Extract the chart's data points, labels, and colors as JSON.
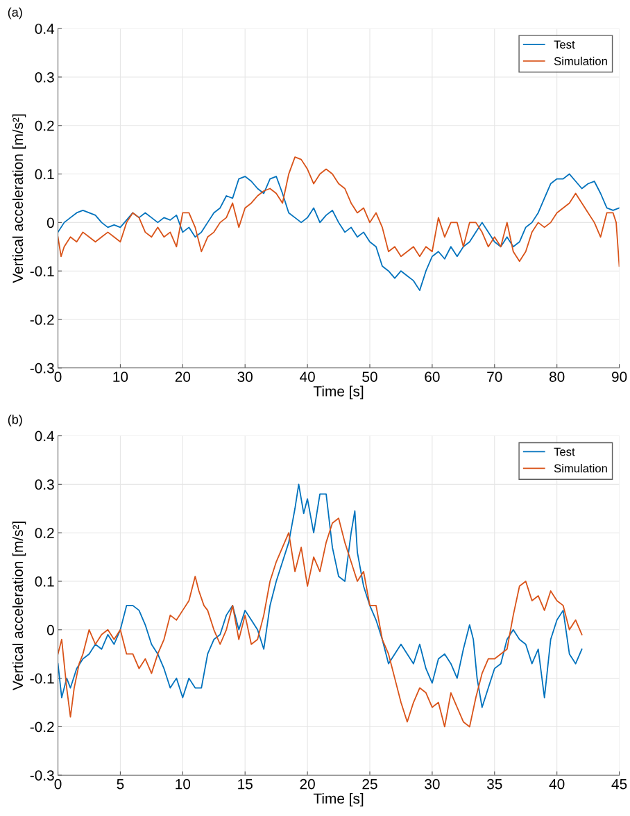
{
  "chart_data": [
    {
      "type": "line",
      "xlabel": "Time [s]",
      "ylabel": "Vertical acceleration [m/s²]",
      "annotations": [
        "(a)"
      ],
      "xlim": [
        0,
        90
      ],
      "ylim": [
        -0.3,
        0.4
      ],
      "xticks": [
        0,
        10,
        20,
        30,
        40,
        50,
        60,
        70,
        80,
        90
      ],
      "yticks": [
        -0.3,
        -0.2,
        -0.1,
        0,
        0.1,
        0.2,
        0.3,
        0.4
      ],
      "grid": true,
      "legend": "top right",
      "marker": "none",
      "line_style": "solid",
      "series": [
        {
          "name": "Test",
          "color": "#0072bd",
          "x": [
            0,
            1,
            2,
            3,
            4,
            5,
            6,
            7,
            8,
            9,
            10,
            11,
            12,
            13,
            14,
            15,
            16,
            17,
            18,
            19,
            20,
            21,
            22,
            23,
            24,
            25,
            26,
            27,
            28,
            29,
            30,
            31,
            32,
            33,
            34,
            35,
            36,
            37,
            38,
            39,
            40,
            41,
            42,
            43,
            44,
            45,
            46,
            47,
            48,
            49,
            50,
            51,
            52,
            53,
            54,
            55,
            56,
            57,
            58,
            59,
            60,
            61,
            62,
            63,
            64,
            65,
            66,
            67,
            68,
            69,
            70,
            71,
            72,
            73,
            74,
            75,
            76,
            77,
            78,
            79,
            80,
            81,
            82,
            83,
            84,
            85,
            86,
            87,
            88,
            89,
            90
          ],
          "values": [
            -0.02,
            0.0,
            0.01,
            0.02,
            0.025,
            0.02,
            0.015,
            0.0,
            -0.01,
            -0.005,
            -0.01,
            0.005,
            0.02,
            0.01,
            0.02,
            0.01,
            0.0,
            0.01,
            0.005,
            0.015,
            -0.02,
            -0.01,
            -0.03,
            -0.02,
            0.0,
            0.02,
            0.03,
            0.055,
            0.05,
            0.09,
            0.095,
            0.085,
            0.07,
            0.06,
            0.09,
            0.095,
            0.06,
            0.02,
            0.01,
            0.0,
            0.01,
            0.03,
            0.0,
            0.015,
            0.025,
            0.0,
            -0.02,
            -0.01,
            -0.03,
            -0.02,
            -0.04,
            -0.05,
            -0.09,
            -0.1,
            -0.115,
            -0.1,
            -0.11,
            -0.12,
            -0.14,
            -0.1,
            -0.07,
            -0.06,
            -0.075,
            -0.05,
            -0.07,
            -0.05,
            -0.04,
            -0.02,
            0.0,
            -0.02,
            -0.04,
            -0.05,
            -0.03,
            -0.05,
            -0.04,
            -0.01,
            0.0,
            0.02,
            0.05,
            0.08,
            0.09,
            0.09,
            0.1,
            0.085,
            0.07,
            0.08,
            0.085,
            0.06,
            0.03,
            0.025,
            0.03
          ]
        },
        {
          "name": "Simulation",
          "color": "#d95319",
          "x": [
            0,
            0.5,
            1,
            2,
            3,
            4,
            5,
            6,
            7,
            8,
            9,
            10,
            11,
            12,
            13,
            14,
            15,
            16,
            17,
            18,
            19,
            20,
            21,
            22,
            23,
            24,
            25,
            26,
            27,
            28,
            29,
            30,
            31,
            32,
            33,
            34,
            35,
            36,
            37,
            38,
            39,
            40,
            41,
            42,
            43,
            44,
            45,
            46,
            47,
            48,
            49,
            50,
            51,
            52,
            53,
            54,
            55,
            56,
            57,
            58,
            59,
            60,
            61,
            62,
            63,
            64,
            65,
            66,
            67,
            68,
            69,
            70,
            71,
            72,
            73,
            74,
            75,
            76,
            77,
            78,
            79,
            80,
            81,
            82,
            83,
            84,
            85,
            86,
            87,
            88,
            89,
            89.5,
            90
          ],
          "values": [
            -0.03,
            -0.07,
            -0.05,
            -0.03,
            -0.04,
            -0.02,
            -0.03,
            -0.04,
            -0.03,
            -0.02,
            -0.03,
            -0.04,
            0.0,
            0.02,
            0.01,
            -0.02,
            -0.03,
            -0.01,
            -0.03,
            -0.02,
            -0.05,
            0.02,
            0.02,
            -0.01,
            -0.06,
            -0.03,
            -0.02,
            0.0,
            0.01,
            0.04,
            -0.01,
            0.03,
            0.04,
            0.055,
            0.065,
            0.07,
            0.06,
            0.04,
            0.1,
            0.135,
            0.13,
            0.11,
            0.08,
            0.1,
            0.11,
            0.1,
            0.08,
            0.07,
            0.04,
            0.02,
            0.03,
            0.0,
            0.02,
            -0.01,
            -0.06,
            -0.05,
            -0.07,
            -0.06,
            -0.05,
            -0.07,
            -0.05,
            -0.06,
            0.01,
            -0.03,
            0.0,
            0.0,
            -0.05,
            0.0,
            0.0,
            -0.02,
            -0.05,
            -0.03,
            -0.05,
            0.0,
            -0.06,
            -0.08,
            -0.06,
            -0.02,
            0.0,
            -0.01,
            0.0,
            0.02,
            0.03,
            0.04,
            0.06,
            0.04,
            0.02,
            0.0,
            -0.03,
            0.02,
            0.02,
            0.0,
            -0.09
          ]
        }
      ]
    },
    {
      "type": "line",
      "xlabel": "Time [s]",
      "ylabel": "Vertical acceleration [m/s²]",
      "annotations": [
        "(b)"
      ],
      "xlim": [
        0,
        45
      ],
      "ylim": [
        -0.3,
        0.4
      ],
      "xticks": [
        0,
        5,
        10,
        15,
        20,
        25,
        30,
        35,
        40,
        45
      ],
      "yticks": [
        -0.3,
        -0.2,
        -0.1,
        0,
        0.1,
        0.2,
        0.3,
        0.4
      ],
      "grid": true,
      "legend": "top right",
      "marker": "none",
      "line_style": "solid",
      "series": [
        {
          "name": "Test",
          "color": "#0072bd",
          "x": [
            0,
            0.3,
            0.7,
            1,
            1.5,
            2,
            2.5,
            3,
            3.5,
            4,
            4.5,
            5,
            5.5,
            6,
            6.5,
            7,
            7.5,
            8,
            8.5,
            9,
            9.5,
            10,
            10.5,
            11,
            11.5,
            12,
            12.5,
            13,
            13.5,
            14,
            14.5,
            15,
            15.5,
            16,
            16.5,
            17,
            17.5,
            18,
            18.5,
            19,
            19.3,
            19.7,
            20,
            20.5,
            21,
            21.5,
            22,
            22.5,
            23,
            23.5,
            23.8,
            24,
            24.5,
            25,
            25.5,
            26,
            26.5,
            27,
            27.5,
            28,
            28.5,
            29,
            29.5,
            30,
            30.5,
            31,
            31.5,
            32,
            32.5,
            33,
            33.3,
            33.6,
            34,
            34.5,
            35,
            35.5,
            36,
            36.5,
            37,
            37.5,
            38,
            38.5,
            39,
            39.5,
            40,
            40.5,
            41,
            41.5,
            42
          ],
          "values": [
            -0.07,
            -0.14,
            -0.1,
            -0.12,
            -0.08,
            -0.06,
            -0.05,
            -0.03,
            -0.04,
            -0.01,
            -0.03,
            0.0,
            0.05,
            0.05,
            0.04,
            0.01,
            -0.03,
            -0.05,
            -0.08,
            -0.12,
            -0.1,
            -0.14,
            -0.1,
            -0.12,
            -0.12,
            -0.05,
            -0.02,
            -0.01,
            0.03,
            0.05,
            0.0,
            0.04,
            0.02,
            0.0,
            -0.04,
            0.05,
            0.1,
            0.14,
            0.18,
            0.25,
            0.3,
            0.24,
            0.27,
            0.2,
            0.28,
            0.28,
            0.17,
            0.11,
            0.1,
            0.2,
            0.245,
            0.16,
            0.09,
            0.05,
            0.02,
            -0.02,
            -0.07,
            -0.05,
            -0.03,
            -0.05,
            -0.07,
            -0.03,
            -0.08,
            -0.11,
            -0.06,
            -0.05,
            -0.07,
            -0.1,
            -0.04,
            0.01,
            -0.02,
            -0.1,
            -0.16,
            -0.12,
            -0.08,
            -0.07,
            -0.02,
            0.0,
            -0.02,
            -0.03,
            -0.07,
            -0.04,
            -0.14,
            -0.02,
            0.02,
            0.04,
            -0.05,
            -0.07,
            -0.04
          ]
        },
        {
          "name": "Simulation",
          "color": "#d95319",
          "x": [
            0,
            0.3,
            0.7,
            1,
            1.3,
            1.7,
            2,
            2.5,
            3,
            3.5,
            4,
            4.5,
            5,
            5.5,
            6,
            6.5,
            7,
            7.5,
            8,
            8.5,
            9,
            9.5,
            10,
            10.5,
            11,
            11.3,
            11.7,
            12,
            12.5,
            13,
            13.5,
            14,
            14.5,
            15,
            15.5,
            16,
            16.5,
            17,
            17.5,
            18,
            18.5,
            19,
            19.5,
            20,
            20.5,
            21,
            21.5,
            22,
            22.5,
            23,
            23.5,
            24,
            24.5,
            25,
            25.5,
            26,
            26.5,
            27,
            27.5,
            28,
            28.5,
            29,
            29.5,
            30,
            30.5,
            31,
            31.5,
            32,
            32.5,
            33,
            33.5,
            34,
            34.5,
            35,
            35.5,
            36,
            36.5,
            37,
            37.5,
            38,
            38.5,
            39,
            39.5,
            40,
            40.5,
            41,
            41.5,
            42
          ],
          "values": [
            -0.05,
            -0.02,
            -0.12,
            -0.18,
            -0.12,
            -0.07,
            -0.05,
            0.0,
            -0.03,
            -0.01,
            0.0,
            -0.02,
            0.0,
            -0.05,
            -0.05,
            -0.08,
            -0.06,
            -0.09,
            -0.05,
            -0.02,
            0.03,
            0.02,
            0.04,
            0.06,
            0.11,
            0.08,
            0.05,
            0.04,
            0.0,
            -0.03,
            0.0,
            0.05,
            -0.02,
            0.03,
            -0.03,
            -0.02,
            0.03,
            0.1,
            0.14,
            0.17,
            0.2,
            0.12,
            0.17,
            0.09,
            0.15,
            0.12,
            0.18,
            0.22,
            0.23,
            0.18,
            0.14,
            0.1,
            0.12,
            0.05,
            0.05,
            -0.02,
            -0.05,
            -0.1,
            -0.15,
            -0.19,
            -0.15,
            -0.12,
            -0.13,
            -0.16,
            -0.15,
            -0.2,
            -0.13,
            -0.16,
            -0.19,
            -0.2,
            -0.14,
            -0.09,
            -0.06,
            -0.06,
            -0.05,
            -0.04,
            0.03,
            0.09,
            0.1,
            0.06,
            0.07,
            0.04,
            0.08,
            0.06,
            0.05,
            0.0,
            0.02,
            -0.01
          ]
        }
      ]
    }
  ]
}
